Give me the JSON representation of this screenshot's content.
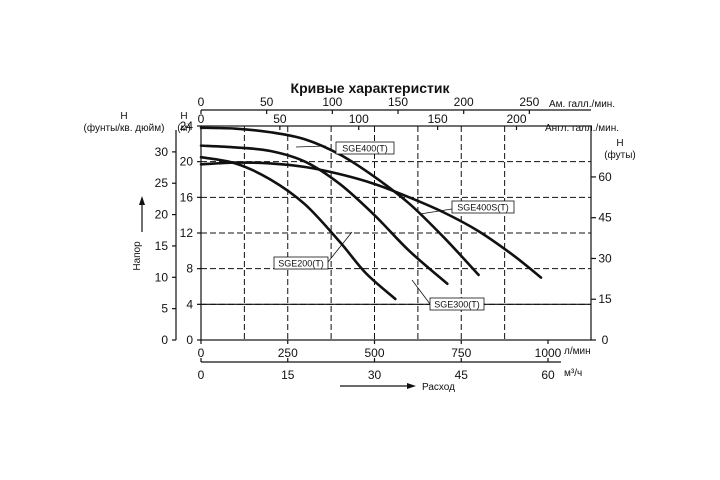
{
  "chart_data": {
    "type": "line",
    "title": "Кривые характеристик",
    "x_units": {
      "lpm": "л/мин",
      "m3h": "м³/ч",
      "us_gpm": "Ам. галл./мин.",
      "imp_gpm": "Англ. галл./мин."
    },
    "xlabel": "Расход",
    "ylabel": "Напор",
    "y_units": {
      "meters": "(м)",
      "psi": "(фунты/кв. дюйм)",
      "feet": "(футы)",
      "H": "H"
    },
    "xlim": [
      0,
      1000
    ],
    "ylim": [
      0,
      24
    ],
    "ticks": {
      "lpm": [
        "0",
        "250",
        "500",
        "750",
        "1000"
      ],
      "m3h": [
        "0",
        "15",
        "30",
        "45",
        "60"
      ],
      "us_gpm": [
        "0",
        "50",
        "100",
        "150",
        "200",
        "250"
      ],
      "imp_gpm": [
        "0",
        "50",
        "100",
        "150",
        "200"
      ],
      "meters": [
        "0",
        "4",
        "8",
        "12",
        "16",
        "20",
        "24"
      ],
      "psi": [
        "0",
        "5",
        "10",
        "15",
        "20",
        "25",
        "30"
      ],
      "feet": [
        "0",
        "15",
        "30",
        "45",
        "60"
      ]
    },
    "series": [
      {
        "name": "SGE200(T)",
        "x": [
          0,
          100,
          200,
          300,
          400,
          475,
          560
        ],
        "y": [
          20.5,
          19.8,
          18.0,
          15.2,
          11.0,
          7.5,
          4.6
        ]
      },
      {
        "name": "SGE300(T)",
        "x": [
          0,
          100,
          200,
          300,
          400,
          500,
          600,
          710
        ],
        "y": [
          21.8,
          21.6,
          21.2,
          20.0,
          17.5,
          14.0,
          10.0,
          6.3
        ]
      },
      {
        "name": "SGE400(T)",
        "x": [
          0,
          100,
          200,
          300,
          400,
          500,
          600,
          700,
          800
        ],
        "y": [
          23.8,
          23.7,
          23.3,
          22.5,
          20.8,
          18.3,
          15.3,
          11.5,
          7.3
        ]
      },
      {
        "name": "SGE400S(T)",
        "x": [
          0,
          100,
          200,
          300,
          400,
          500,
          600,
          700,
          800,
          900,
          980
        ],
        "y": [
          19.7,
          19.9,
          19.8,
          19.4,
          18.6,
          17.5,
          16.0,
          14.3,
          12.2,
          9.5,
          7.0
        ]
      }
    ],
    "grid": true
  }
}
